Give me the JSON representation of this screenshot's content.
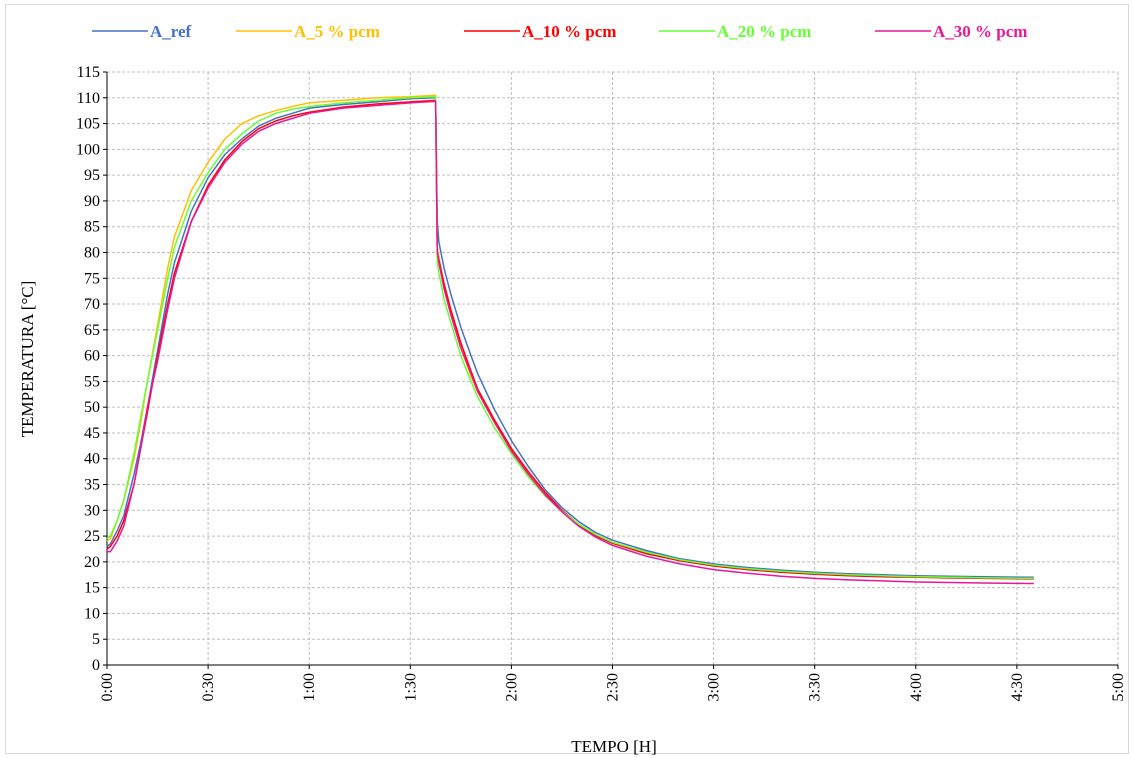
{
  "chart_data": {
    "type": "line",
    "xlabel": "TEMPO [H]",
    "ylabel": "TEMPERATURA [°C]",
    "xlim_minutes": [
      0,
      300
    ],
    "x_ticks": [
      "0:00",
      "0:30",
      "1:00",
      "1:30",
      "2:00",
      "2:30",
      "3:00",
      "3:30",
      "4:00",
      "4:30",
      "5:00"
    ],
    "ylim": [
      0,
      115
    ],
    "y_ticks": [
      0,
      5,
      10,
      15,
      20,
      25,
      30,
      35,
      40,
      45,
      50,
      55,
      60,
      65,
      70,
      75,
      80,
      85,
      90,
      95,
      100,
      105,
      110,
      115
    ],
    "grid": true,
    "legend_position": "top",
    "series": [
      {
        "name": "A_ref",
        "color": "#4472c4",
        "x_minutes": [
          0,
          1,
          3,
          5,
          8,
          10,
          12,
          15,
          18,
          20,
          25,
          30,
          35,
          40,
          45,
          50,
          55,
          60,
          70,
          80,
          90,
          97.5,
          98,
          98.5,
          100,
          102,
          105,
          108,
          110,
          115,
          120,
          125,
          130,
          135,
          140,
          145,
          150,
          160,
          170,
          180,
          190,
          200,
          210,
          220,
          230,
          240,
          250,
          260,
          275
        ],
        "values": [
          23,
          23.5,
          26,
          29,
          37,
          43,
          50,
          61,
          72,
          78,
          88,
          94.5,
          99,
          102,
          104.5,
          106,
          107,
          108,
          108.7,
          109.2,
          109.8,
          110,
          86,
          82,
          77,
          72,
          65.5,
          60,
          56.5,
          49.5,
          43.5,
          38.5,
          34,
          30.5,
          27.8,
          25.7,
          24.2,
          22.2,
          20.6,
          19.6,
          18.9,
          18.4,
          18,
          17.7,
          17.5,
          17.3,
          17.2,
          17.1,
          17
        ]
      },
      {
        "name": "A_5 % pcm",
        "color": "#ffc000",
        "x_minutes": [
          0,
          1,
          3,
          5,
          8,
          10,
          12,
          15,
          18,
          20,
          25,
          30,
          35,
          40,
          45,
          50,
          55,
          60,
          70,
          80,
          90,
          97.5,
          98,
          98.5,
          100,
          102,
          105,
          108,
          110,
          115,
          120,
          125,
          130,
          135,
          140,
          145,
          150,
          160,
          170,
          180,
          190,
          200,
          210,
          220,
          230,
          240,
          250,
          260,
          275
        ],
        "values": [
          24,
          24.5,
          28,
          32,
          40,
          47,
          55,
          66,
          77,
          83,
          92,
          97.5,
          102,
          105,
          106.5,
          107.5,
          108.3,
          109,
          109.5,
          110,
          110.2,
          110.5,
          81,
          79,
          74,
          68.5,
          61.5,
          56,
          53,
          47,
          41.5,
          37,
          33,
          30,
          27.3,
          25.3,
          23.8,
          21.8,
          20.3,
          19.3,
          18.6,
          18.1,
          17.7,
          17.4,
          17.2,
          17.1,
          17,
          16.9,
          16.8
        ]
      },
      {
        "name": "A_10 % pcm",
        "color": "#ff0000",
        "x_minutes": [
          0,
          1,
          3,
          5,
          8,
          10,
          12,
          15,
          18,
          20,
          25,
          30,
          35,
          40,
          45,
          50,
          55,
          60,
          70,
          80,
          90,
          97.5,
          98,
          98.5,
          100,
          102,
          105,
          108,
          110,
          115,
          120,
          125,
          130,
          135,
          140,
          145,
          150,
          160,
          170,
          180,
          190,
          200,
          210,
          220,
          230,
          240,
          250,
          260,
          275
        ],
        "values": [
          22.5,
          23,
          25,
          28,
          35,
          42,
          49,
          60,
          70,
          76,
          86,
          93,
          98,
          101.5,
          104,
          105.5,
          106.5,
          107.2,
          108.2,
          108.8,
          109.2,
          109.5,
          80,
          78.5,
          74,
          69,
          62.5,
          57,
          53.5,
          47.5,
          42,
          37.5,
          33.5,
          30,
          27.2,
          25.1,
          23.6,
          21.6,
          20.2,
          19.2,
          18.5,
          18,
          17.6,
          17.3,
          17.1,
          17,
          16.9,
          16.8,
          16.7
        ]
      },
      {
        "name": "A_20 % pcm",
        "color": "#66ff33",
        "x_minutes": [
          0,
          1,
          3,
          5,
          8,
          10,
          12,
          15,
          18,
          20,
          25,
          30,
          35,
          40,
          45,
          50,
          55,
          60,
          70,
          80,
          90,
          97.5,
          98,
          98.5,
          100,
          102,
          105,
          108,
          110,
          115,
          120,
          125,
          130,
          135,
          140,
          145,
          150,
          160,
          170,
          180,
          190,
          200,
          210,
          220,
          230,
          240,
          250,
          260,
          275
        ],
        "values": [
          24.5,
          25,
          28,
          32,
          41,
          48,
          55,
          65,
          75,
          81,
          90,
          95.5,
          100,
          103,
          105.5,
          107,
          107.8,
          108.3,
          109,
          109.5,
          110,
          110.2,
          78,
          76,
          71,
          66.5,
          60,
          55,
          52,
          46,
          41,
          36.5,
          32.8,
          29.8,
          27.3,
          25.3,
          23.8,
          21.9,
          20.4,
          19.4,
          18.7,
          18.2,
          17.8,
          17.5,
          17.3,
          17.1,
          17,
          16.9,
          16.8
        ]
      },
      {
        "name": "A_30 % pcm",
        "color": "#e6189a",
        "x_minutes": [
          0,
          1,
          3,
          5,
          8,
          10,
          12,
          15,
          18,
          20,
          25,
          30,
          35,
          40,
          45,
          50,
          55,
          60,
          70,
          80,
          90,
          97.5,
          98,
          98.5,
          100,
          102,
          105,
          108,
          110,
          115,
          120,
          125,
          130,
          135,
          140,
          145,
          150,
          160,
          170,
          180,
          190,
          200,
          210,
          220,
          230,
          240,
          250,
          260,
          275
        ],
        "values": [
          22,
          22,
          24,
          27,
          35,
          42,
          50,
          59,
          69,
          75,
          86,
          92.5,
          97.5,
          101,
          103.5,
          105,
          106,
          107,
          108,
          108.5,
          109,
          109.3,
          80,
          78,
          73,
          68,
          61.5,
          56.5,
          53,
          47,
          41.5,
          37,
          33,
          29.7,
          26.9,
          24.8,
          23.2,
          21.1,
          19.6,
          18.5,
          17.8,
          17.2,
          16.8,
          16.5,
          16.3,
          16.1,
          16,
          15.9,
          15.8
        ]
      }
    ]
  }
}
